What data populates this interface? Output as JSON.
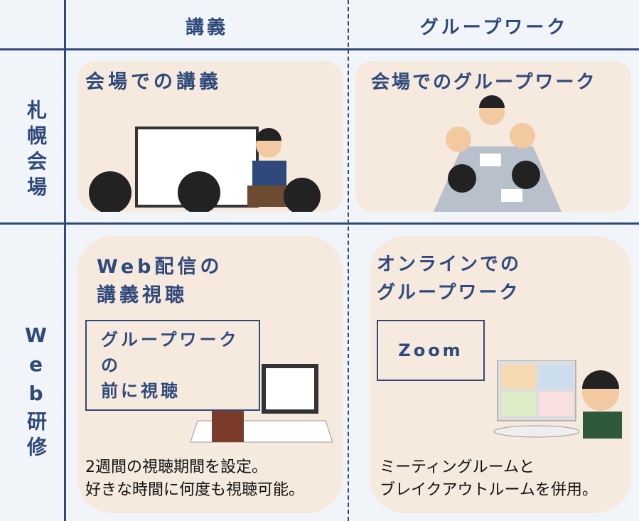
{
  "header": {
    "columns": [
      "講義",
      "グループワーク"
    ]
  },
  "rows": [
    {
      "label": "札幌会場",
      "cells": [
        {
          "title": [
            "会場での講義"
          ]
        },
        {
          "title": [
            "会場でのグループワーク"
          ]
        }
      ]
    },
    {
      "label": "Web研修",
      "cells": [
        {
          "title": [
            "Web配信の",
            "講義視聴"
          ],
          "box": [
            "グループワークの",
            "前に視聴"
          ],
          "note": [
            "2週間の視聴期間を設定。",
            "好きな時間に何度も視聴可能。"
          ]
        },
        {
          "title": [
            "オンラインでの",
            "グループワーク"
          ],
          "box": [
            "Zoom"
          ],
          "note": [
            "ミーティングルームと",
            "ブレイクアウトルームを併用。"
          ]
        }
      ]
    }
  ]
}
